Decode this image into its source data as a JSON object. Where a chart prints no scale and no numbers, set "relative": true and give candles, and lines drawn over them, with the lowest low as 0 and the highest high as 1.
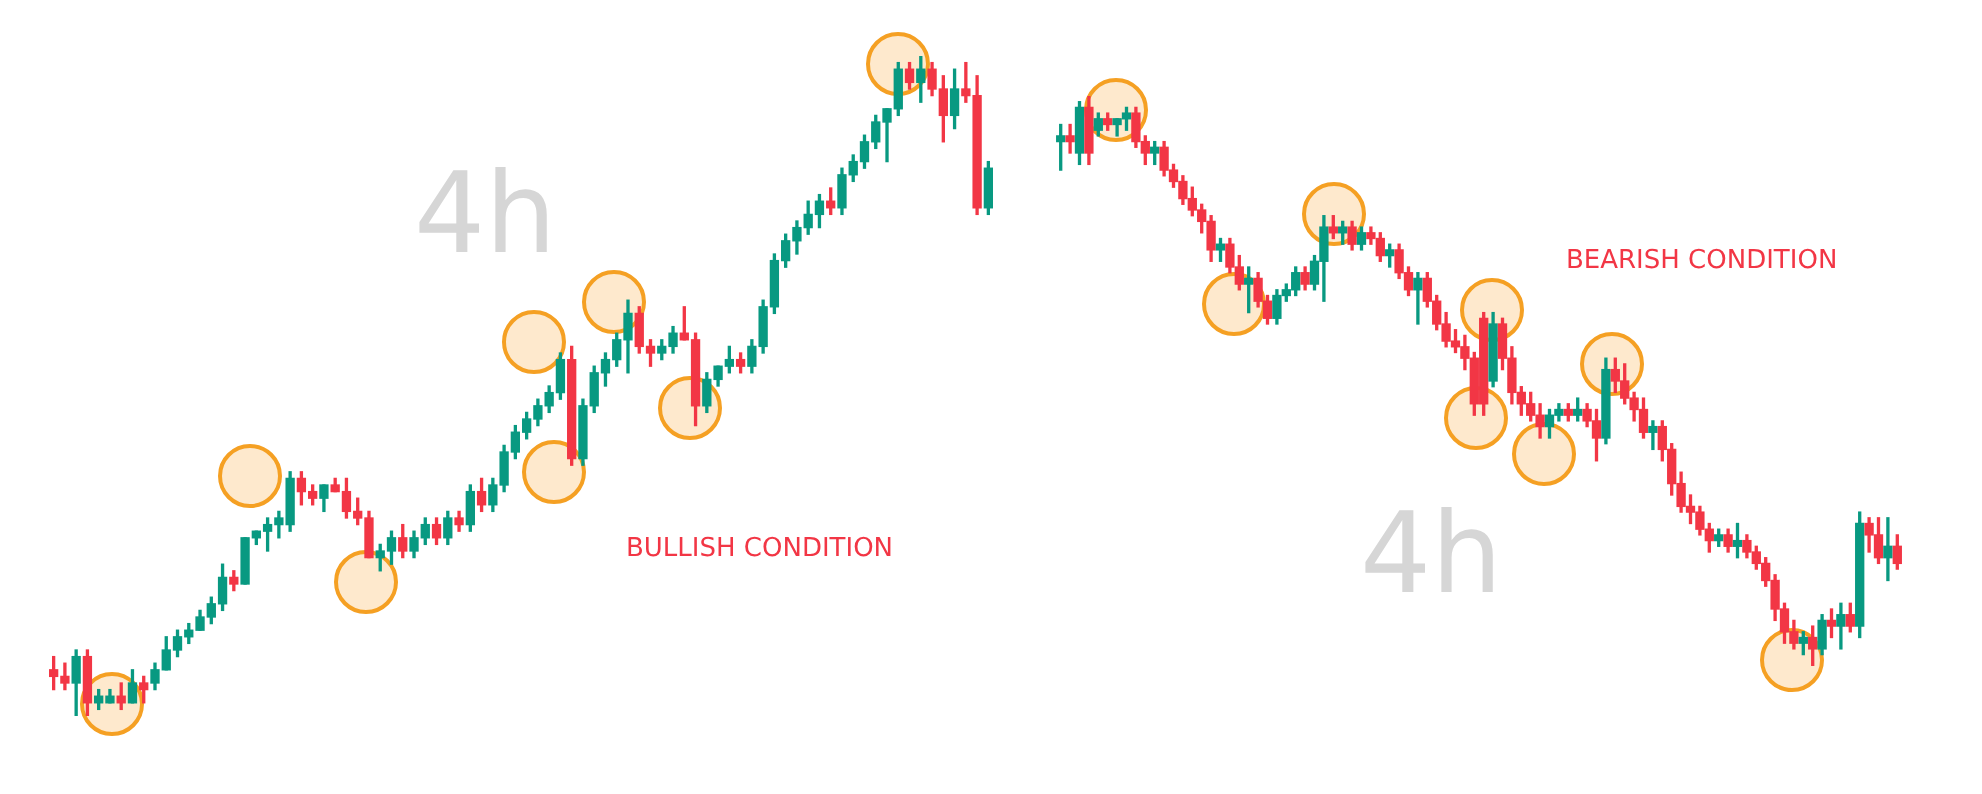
{
  "chart_data": [
    {
      "type": "candlestick",
      "relative": true,
      "annotations": [
        "4h",
        "BULLISH CONDITION"
      ],
      "categories": [
        null,
        null,
        null,
        null,
        null,
        null,
        null,
        null,
        null,
        null,
        null,
        null,
        null,
        null,
        null,
        null,
        null,
        null,
        null,
        null,
        null,
        null,
        null,
        null,
        null,
        null,
        null,
        null,
        null,
        null,
        null,
        null,
        null,
        null,
        null,
        null,
        null,
        null,
        null,
        null,
        null,
        null,
        null,
        null,
        null,
        null,
        null,
        null,
        null,
        null,
        null,
        null,
        null,
        null,
        null,
        null,
        null,
        null,
        null,
        null,
        null,
        null,
        null,
        null,
        null,
        null,
        null,
        null,
        null,
        null,
        null,
        null,
        null,
        null,
        null,
        null,
        null,
        null,
        null,
        null,
        null,
        null,
        null,
        null
      ],
      "ohlc": [
        [
          0.07,
          0.09,
          0.04,
          0.06
        ],
        [
          0.06,
          0.08,
          0.04,
          0.05
        ],
        [
          0.05,
          0.1,
          0,
          0.09
        ],
        [
          0.09,
          0.1,
          0,
          0.02
        ],
        [
          0.02,
          0.04,
          0.01,
          0.03
        ],
        [
          0.02,
          0.04,
          0.02,
          0.03
        ],
        [
          0.03,
          0.05,
          0.01,
          0.02
        ],
        [
          0.02,
          0.07,
          0.02,
          0.05
        ],
        [
          0.05,
          0.06,
          0.02,
          0.04
        ],
        [
          0.05,
          0.08,
          0.04,
          0.07
        ],
        [
          0.07,
          0.12,
          0.07,
          0.1
        ],
        [
          0.1,
          0.13,
          0.09,
          0.12
        ],
        [
          0.12,
          0.14,
          0.11,
          0.13
        ],
        [
          0.13,
          0.16,
          0.13,
          0.15
        ],
        [
          0.15,
          0.18,
          0.14,
          0.17
        ],
        [
          0.17,
          0.23,
          0.16,
          0.21
        ],
        [
          0.21,
          0.22,
          0.19,
          0.2
        ],
        [
          0.2,
          0.27,
          0.2,
          0.27
        ],
        [
          0.27,
          0.28,
          0.26,
          0.28
        ],
        [
          0.28,
          0.3,
          0.25,
          0.29
        ],
        [
          0.29,
          0.31,
          0.27,
          0.3
        ],
        [
          0.29,
          0.37,
          0.28,
          0.36
        ],
        [
          0.36,
          0.37,
          0.32,
          0.34
        ],
        [
          0.34,
          0.35,
          0.32,
          0.33
        ],
        [
          0.33,
          0.35,
          0.31,
          0.35
        ],
        [
          0.35,
          0.36,
          0.34,
          0.34
        ],
        [
          0.34,
          0.36,
          0.3,
          0.31
        ],
        [
          0.31,
          0.33,
          0.29,
          0.3
        ],
        [
          0.3,
          0.31,
          0.24,
          0.24
        ],
        [
          0.24,
          0.26,
          0.22,
          0.25
        ],
        [
          0.25,
          0.28,
          0.23,
          0.27
        ],
        [
          0.27,
          0.29,
          0.24,
          0.25
        ],
        [
          0.25,
          0.28,
          0.24,
          0.27
        ],
        [
          0.27,
          0.3,
          0.26,
          0.29
        ],
        [
          0.29,
          0.3,
          0.26,
          0.27
        ],
        [
          0.27,
          0.31,
          0.26,
          0.3
        ],
        [
          0.3,
          0.31,
          0.28,
          0.29
        ],
        [
          0.29,
          0.35,
          0.28,
          0.34
        ],
        [
          0.34,
          0.36,
          0.31,
          0.32
        ],
        [
          0.32,
          0.36,
          0.31,
          0.35
        ],
        [
          0.35,
          0.41,
          0.34,
          0.4
        ],
        [
          0.4,
          0.44,
          0.39,
          0.43
        ],
        [
          0.43,
          0.46,
          0.42,
          0.45
        ],
        [
          0.45,
          0.48,
          0.44,
          0.47
        ],
        [
          0.47,
          0.5,
          0.46,
          0.49
        ],
        [
          0.49,
          0.55,
          0.48,
          0.54
        ],
        [
          0.54,
          0.56,
          0.38,
          0.39
        ],
        [
          0.39,
          0.48,
          0.38,
          0.47
        ],
        [
          0.47,
          0.53,
          0.46,
          0.52
        ],
        [
          0.52,
          0.55,
          0.5,
          0.54
        ],
        [
          0.54,
          0.58,
          0.53,
          0.57
        ],
        [
          0.57,
          0.63,
          0.52,
          0.61
        ],
        [
          0.61,
          0.62,
          0.55,
          0.56
        ],
        [
          0.56,
          0.57,
          0.53,
          0.55
        ],
        [
          0.55,
          0.57,
          0.54,
          0.56
        ],
        [
          0.56,
          0.59,
          0.55,
          0.58
        ],
        [
          0.58,
          0.62,
          0.57,
          0.57
        ],
        [
          0.57,
          0.58,
          0.44,
          0.47
        ],
        [
          0.47,
          0.52,
          0.46,
          0.51
        ],
        [
          0.51,
          0.53,
          0.5,
          0.53
        ],
        [
          0.53,
          0.56,
          0.52,
          0.54
        ],
        [
          0.54,
          0.55,
          0.52,
          0.53
        ],
        [
          0.53,
          0.57,
          0.52,
          0.56
        ],
        [
          0.56,
          0.63,
          0.55,
          0.62
        ],
        [
          0.62,
          0.7,
          0.61,
          0.69
        ],
        [
          0.69,
          0.73,
          0.68,
          0.72
        ],
        [
          0.72,
          0.75,
          0.7,
          0.74
        ],
        [
          0.74,
          0.78,
          0.73,
          0.76
        ],
        [
          0.76,
          0.79,
          0.74,
          0.78
        ],
        [
          0.78,
          0.8,
          0.76,
          0.77
        ],
        [
          0.77,
          0.83,
          0.76,
          0.82
        ],
        [
          0.82,
          0.85,
          0.81,
          0.84
        ],
        [
          0.84,
          0.88,
          0.83,
          0.87
        ],
        [
          0.87,
          0.91,
          0.86,
          0.9
        ],
        [
          0.9,
          0.92,
          0.84,
          0.92
        ],
        [
          0.92,
          0.99,
          0.91,
          0.98
        ],
        [
          0.98,
          0.99,
          0.95,
          0.96
        ],
        [
          0.96,
          1,
          0.93,
          0.98
        ],
        [
          0.98,
          0.99,
          0.94,
          0.95
        ],
        [
          0.95,
          0.97,
          0.87,
          0.91
        ],
        [
          0.91,
          0.98,
          0.89,
          0.95
        ],
        [
          0.95,
          0.99,
          0.93,
          0.94
        ],
        [
          0.94,
          0.97,
          0.76,
          0.77
        ],
        [
          0.77,
          0.84,
          0.76,
          0.83
        ]
      ]
    },
    {
      "type": "candlestick",
      "relative": true,
      "annotations": [
        "4h",
        "BEARISH CONDITION"
      ],
      "categories": [
        null,
        null,
        null,
        null,
        null,
        null,
        null,
        null,
        null,
        null,
        null,
        null,
        null,
        null,
        null,
        null,
        null,
        null,
        null,
        null,
        null,
        null,
        null,
        null,
        null,
        null,
        null,
        null,
        null,
        null,
        null,
        null,
        null,
        null,
        null,
        null,
        null,
        null,
        null,
        null,
        null,
        null,
        null,
        null,
        null,
        null,
        null,
        null,
        null,
        null,
        null,
        null,
        null,
        null,
        null,
        null,
        null,
        null,
        null,
        null,
        null,
        null,
        null,
        null,
        null,
        null,
        null,
        null,
        null,
        null,
        null,
        null,
        null,
        null,
        null,
        null,
        null,
        null,
        null,
        null,
        null,
        null,
        null,
        null,
        null,
        null,
        null,
        null,
        null,
        null
      ],
      "ohlc": [
        [
          0.92,
          0.95,
          0.87,
          0.93
        ],
        [
          0.93,
          0.95,
          0.9,
          0.92
        ],
        [
          0.9,
          0.99,
          0.88,
          0.98
        ],
        [
          0.98,
          1,
          0.88,
          0.9
        ],
        [
          0.94,
          0.97,
          0.93,
          0.96
        ],
        [
          0.96,
          0.97,
          0.94,
          0.95
        ],
        [
          0.95,
          0.96,
          0.93,
          0.96
        ],
        [
          0.96,
          0.98,
          0.94,
          0.97
        ],
        [
          0.97,
          0.98,
          0.91,
          0.92
        ],
        [
          0.92,
          0.93,
          0.88,
          0.9
        ],
        [
          0.9,
          0.92,
          0.88,
          0.91
        ],
        [
          0.91,
          0.92,
          0.86,
          0.87
        ],
        [
          0.87,
          0.88,
          0.84,
          0.85
        ],
        [
          0.85,
          0.86,
          0.81,
          0.82
        ],
        [
          0.82,
          0.84,
          0.79,
          0.8
        ],
        [
          0.8,
          0.81,
          0.76,
          0.78
        ],
        [
          0.78,
          0.79,
          0.71,
          0.73
        ],
        [
          0.73,
          0.75,
          0.71,
          0.74
        ],
        [
          0.74,
          0.75,
          0.69,
          0.7
        ],
        [
          0.7,
          0.72,
          0.66,
          0.67
        ],
        [
          0.67,
          0.7,
          0.62,
          0.68
        ],
        [
          0.68,
          0.69,
          0.63,
          0.64
        ],
        [
          0.64,
          0.65,
          0.6,
          0.61
        ],
        [
          0.61,
          0.66,
          0.6,
          0.65
        ],
        [
          0.65,
          0.67,
          0.64,
          0.66
        ],
        [
          0.66,
          0.7,
          0.65,
          0.69
        ],
        [
          0.69,
          0.7,
          0.66,
          0.67
        ],
        [
          0.67,
          0.72,
          0.66,
          0.71
        ],
        [
          0.71,
          0.79,
          0.64,
          0.77
        ],
        [
          0.77,
          0.79,
          0.75,
          0.76
        ],
        [
          0.76,
          0.78,
          0.74,
          0.77
        ],
        [
          0.77,
          0.78,
          0.73,
          0.74
        ],
        [
          0.74,
          0.77,
          0.73,
          0.76
        ],
        [
          0.76,
          0.77,
          0.74,
          0.75
        ],
        [
          0.75,
          0.76,
          0.71,
          0.72
        ],
        [
          0.72,
          0.74,
          0.7,
          0.73
        ],
        [
          0.73,
          0.74,
          0.68,
          0.69
        ],
        [
          0.69,
          0.7,
          0.65,
          0.66
        ],
        [
          0.66,
          0.69,
          0.6,
          0.68
        ],
        [
          0.68,
          0.69,
          0.63,
          0.64
        ],
        [
          0.64,
          0.65,
          0.59,
          0.6
        ],
        [
          0.6,
          0.62,
          0.56,
          0.57
        ],
        [
          0.57,
          0.59,
          0.55,
          0.56
        ],
        [
          0.56,
          0.58,
          0.52,
          0.54
        ],
        [
          0.54,
          0.55,
          0.44,
          0.46
        ],
        [
          0.61,
          0.62,
          0.44,
          0.46
        ],
        [
          0.5,
          0.62,
          0.49,
          0.6
        ],
        [
          0.6,
          0.61,
          0.52,
          0.54
        ],
        [
          0.54,
          0.56,
          0.46,
          0.48
        ],
        [
          0.48,
          0.49,
          0.44,
          0.46
        ],
        [
          0.46,
          0.48,
          0.43,
          0.44
        ],
        [
          0.44,
          0.46,
          0.4,
          0.42
        ],
        [
          0.42,
          0.45,
          0.4,
          0.44
        ],
        [
          0.44,
          0.46,
          0.43,
          0.45
        ],
        [
          0.45,
          0.46,
          0.43,
          0.44
        ],
        [
          0.44,
          0.47,
          0.43,
          0.45
        ],
        [
          0.45,
          0.46,
          0.42,
          0.43
        ],
        [
          0.43,
          0.45,
          0.36,
          0.4
        ],
        [
          0.4,
          0.54,
          0.39,
          0.52
        ],
        [
          0.52,
          0.54,
          0.48,
          0.5
        ],
        [
          0.5,
          0.53,
          0.46,
          0.47
        ],
        [
          0.47,
          0.48,
          0.43,
          0.45
        ],
        [
          0.45,
          0.47,
          0.4,
          0.41
        ],
        [
          0.41,
          0.43,
          0.38,
          0.42
        ],
        [
          0.42,
          0.43,
          0.36,
          0.38
        ],
        [
          0.38,
          0.39,
          0.3,
          0.32
        ],
        [
          0.32,
          0.34,
          0.27,
          0.28
        ],
        [
          0.28,
          0.3,
          0.25,
          0.27
        ],
        [
          0.27,
          0.28,
          0.23,
          0.24
        ],
        [
          0.24,
          0.25,
          0.2,
          0.22
        ],
        [
          0.22,
          0.24,
          0.21,
          0.23
        ],
        [
          0.23,
          0.24,
          0.2,
          0.21
        ],
        [
          0.21,
          0.25,
          0.19,
          0.22
        ],
        [
          0.22,
          0.23,
          0.19,
          0.2
        ],
        [
          0.2,
          0.21,
          0.17,
          0.18
        ],
        [
          0.18,
          0.19,
          0.14,
          0.15
        ],
        [
          0.15,
          0.16,
          0.08,
          0.1
        ],
        [
          0.1,
          0.11,
          0.04,
          0.06
        ],
        [
          0.06,
          0.08,
          0.03,
          0.04
        ],
        [
          0.04,
          0.06,
          0.02,
          0.05
        ],
        [
          0.05,
          0.07,
          0,
          0.03
        ],
        [
          0.03,
          0.09,
          0.02,
          0.08
        ],
        [
          0.08,
          0.1,
          0.05,
          0.07
        ],
        [
          0.07,
          0.11,
          0.03,
          0.09
        ],
        [
          0.09,
          0.11,
          0.06,
          0.07
        ],
        [
          0.07,
          0.27,
          0.05,
          0.25
        ],
        [
          0.25,
          0.26,
          0.2,
          0.23
        ],
        [
          0.23,
          0.26,
          0.18,
          0.19
        ],
        [
          0.19,
          0.26,
          0.15,
          0.21
        ],
        [
          0.21,
          0.23,
          0.17,
          0.18
        ]
      ]
    }
  ]
}
